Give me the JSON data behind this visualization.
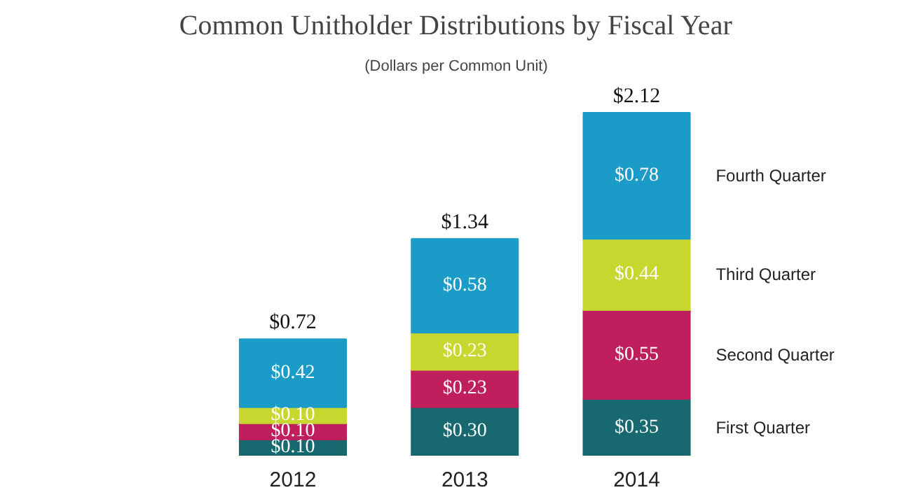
{
  "chart_data": {
    "type": "bar",
    "title": "Common Unitholder Distributions by Fiscal Year",
    "subtitle": "(Dollars per Common Unit)",
    "categories": [
      "2012",
      "2013",
      "2014"
    ],
    "stacked": true,
    "grid": false,
    "data_labels": true,
    "series": [
      {
        "name": "First Quarter",
        "color": "#17686f",
        "values": [
          0.1,
          0.3,
          0.35
        ],
        "value_labels": [
          "$0.10",
          "$0.30",
          "$0.35"
        ]
      },
      {
        "name": "Second Quarter",
        "color": "#c01f5d",
        "values": [
          0.1,
          0.23,
          0.55
        ],
        "value_labels": [
          "$0.10",
          "$0.23",
          "$0.55"
        ]
      },
      {
        "name": "Third Quarter",
        "color": "#c8d630",
        "values": [
          0.1,
          0.23,
          0.44
        ],
        "value_labels": [
          "$0.10",
          "$0.23",
          "$0.44"
        ]
      },
      {
        "name": "Fourth Quarter",
        "color": "#1b9bc8",
        "values": [
          0.42,
          0.58,
          0.78
        ],
        "value_labels": [
          "$0.42",
          "$0.58",
          "$0.78"
        ]
      }
    ],
    "totals": [
      "$0.72",
      "$1.34",
      "$2.12"
    ]
  }
}
